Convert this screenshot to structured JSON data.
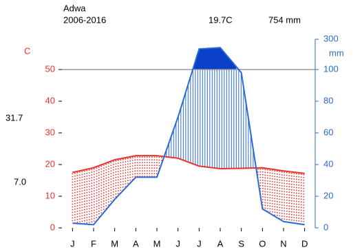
{
  "chart_data": {
    "type": "climate",
    "title": "Adwa",
    "subtitle": "2006-2016",
    "annotations": [
      "19.7C",
      "754 mm"
    ],
    "y_label": "C",
    "y2_label": "mm",
    "side_labels": [
      "31.7",
      "7.0"
    ],
    "categories": [
      "J",
      "F",
      "M",
      "A",
      "M",
      "J",
      "J",
      "A",
      "S",
      "O",
      "N",
      "D"
    ],
    "series": [
      {
        "color": "#e8302a",
        "values": [
          17.5,
          19,
          21.5,
          22.8,
          22.8,
          22,
          19.5,
          18.7,
          18.8,
          19,
          18,
          17.2
        ]
      },
      {
        "color": "#2a6bd6",
        "axis": "y2",
        "values": [
          3,
          2,
          18,
          32,
          32,
          70,
          236,
          245,
          98,
          12,
          4,
          2
        ]
      }
    ],
    "ylim": [
      0,
      50
    ],
    "yticks": [
      0,
      10,
      20,
      30,
      40,
      50
    ],
    "y2lim": [
      0,
      300
    ],
    "y2ticks": [
      0,
      20,
      40,
      60,
      80,
      100,
      300
    ],
    "y2_break": 100,
    "grid": false
  }
}
